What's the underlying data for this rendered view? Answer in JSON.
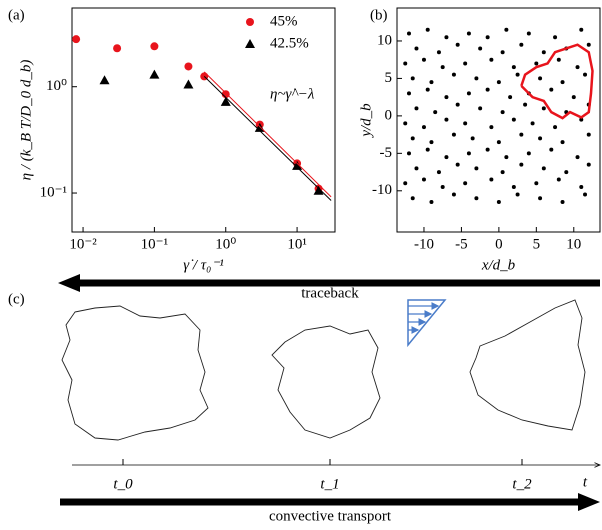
{
  "chart_data": [
    {
      "type": "scatter",
      "panel": "(a)",
      "xlabel": "γ̇ / τ₀⁻¹",
      "ylabel": "η / (k_B T/D_0 d_b)",
      "annotation": "η~γ̇^−λ",
      "xlog": true,
      "ylog": true,
      "xlim": [
        0.007,
        34
      ],
      "ylim": [
        0.043,
        5.5
      ],
      "xticks": [
        {
          "value": 0.01,
          "label": "10⁻²"
        },
        {
          "value": 0.1,
          "label": "10⁻¹"
        },
        {
          "value": 1,
          "label": "10⁰"
        },
        {
          "value": 10,
          "label": "10¹"
        }
      ],
      "yticks": [
        {
          "value": 0.1,
          "label": "10⁻¹"
        },
        {
          "value": 1,
          "label": "10⁰"
        }
      ],
      "legend": "upper right",
      "series": [
        {
          "name": "45%",
          "color": "#e8141c",
          "marker": "circle",
          "x": [
            0.008,
            0.03,
            0.1,
            0.3,
            0.5,
            1,
            3,
            10,
            20
          ],
          "values": [
            2.8,
            2.3,
            2.4,
            1.55,
            1.25,
            0.85,
            0.44,
            0.19,
            0.11
          ]
        },
        {
          "name": "42.5%",
          "color": "#000000",
          "marker": "triangle",
          "x": [
            0.02,
            0.1,
            0.3,
            1,
            3,
            10,
            20
          ],
          "values": [
            1.15,
            1.3,
            1.05,
            0.72,
            0.41,
            0.18,
            0.105
          ]
        },
        {
          "color": "#e8141c",
          "marker": "line",
          "x": [
            0.5,
            30
          ],
          "values": [
            1.38,
            0.092
          ]
        },
        {
          "color": "#000000",
          "marker": "line",
          "x": [
            0.5,
            30
          ],
          "values": [
            1.25,
            0.085
          ]
        }
      ]
    },
    {
      "type": "scatter",
      "panel": "(b)",
      "xlabel": "x/d_b",
      "ylabel": "y/d_b",
      "xlog": false,
      "ylog": false,
      "xlim": [
        -13.6,
        13.5
      ],
      "ylim": [
        -15.5,
        14.4
      ],
      "xticks": [
        -10,
        -5,
        0,
        5,
        10
      ],
      "yticks": [
        -10,
        -5,
        0,
        5,
        10
      ],
      "series": [
        {
          "color": "#000000",
          "marker": "dot",
          "x": [
            -12,
            -9.5,
            -7,
            -4,
            -1.5,
            1,
            4,
            7.5,
            11,
            -11,
            -8,
            -5.5,
            -2.5,
            0.5,
            3,
            6,
            9,
            12,
            -12.5,
            -10,
            -7.5,
            -4.5,
            -1,
            2,
            5,
            8,
            10.5,
            -11.5,
            -9,
            -6,
            -3,
            0,
            2.5,
            5.5,
            8.5,
            11.5,
            -12,
            -9.5,
            -7,
            -4,
            -1.5,
            1.5,
            4,
            7,
            10,
            -11,
            -8.5,
            -5.5,
            -2.5,
            0.5,
            3.5,
            6,
            9,
            12,
            -12.5,
            -10,
            -7,
            -4.5,
            -1,
            2,
            4.5,
            7.5,
            11,
            -11.5,
            -9,
            -6,
            -3.5,
            0,
            3,
            5.5,
            8.5,
            12,
            -12,
            -9.5,
            -7,
            -4,
            -1.5,
            1,
            4,
            7,
            10.5,
            -11,
            -8,
            -5.5,
            -3,
            0.5,
            3,
            6,
            9,
            12,
            -12.5,
            -10,
            -7.5,
            -4.5,
            -1,
            2,
            5,
            8,
            11,
            -11.5,
            -9,
            -6,
            -3,
            0,
            2.5,
            5.5,
            8.5,
            11.5
          ],
          "values": [
            11,
            11.5,
            10.5,
            11,
            10.5,
            11.5,
            11,
            10.5,
            11.5,
            9,
            8.5,
            9.5,
            9,
            8.5,
            9.5,
            8.5,
            9,
            9.5,
            7,
            7.5,
            6.5,
            7,
            7.5,
            6.5,
            7,
            7.5,
            6.5,
            5,
            4.5,
            5.5,
            5,
            4.5,
            5.5,
            5,
            4.5,
            5.5,
            3,
            3.5,
            2.5,
            3,
            3.5,
            2.5,
            3,
            3.5,
            2.5,
            1,
            0.5,
            1.5,
            1,
            0.5,
            1.5,
            1,
            0.5,
            1.5,
            -1,
            -1.5,
            -0.5,
            -1,
            -1.5,
            -0.5,
            -1,
            -1.5,
            -0.5,
            -3,
            -3.5,
            -2.5,
            -3,
            -3.5,
            -2.5,
            -3,
            -3.5,
            -2.5,
            -5,
            -4.5,
            -5.5,
            -5,
            -4.5,
            -5.5,
            -5,
            -4.5,
            -5.5,
            -7,
            -7.5,
            -6.5,
            -7,
            -7.5,
            -6.5,
            -7,
            -7.5,
            -6.5,
            -9,
            -8.5,
            -9.5,
            -9,
            -8.5,
            -9.5,
            -9,
            -8.5,
            -9.5,
            -11,
            -11.5,
            -10.5,
            -11,
            -11.5,
            -10.5,
            -11,
            -11.5,
            -10.5
          ]
        },
        {
          "color": "#e8141c",
          "marker": "line",
          "x": [
            3,
            3.5,
            5,
            6.5,
            7.5,
            9,
            10.5,
            12,
            12.5,
            12.3,
            12,
            11,
            9.5,
            8.5,
            7,
            6,
            4.5,
            3
          ],
          "values": [
            4,
            5.5,
            6.5,
            7,
            8.5,
            9,
            9.5,
            8.5,
            6,
            3,
            0.5,
            -0.2,
            0.5,
            -0.3,
            0.5,
            2,
            2.5,
            4
          ]
        }
      ]
    }
  ],
  "diagram": {
    "panel": "(c)",
    "traceback": "traceback",
    "times": [
      "t_0",
      "t_1",
      "t_2"
    ],
    "time_axis": "t",
    "transport": "convective transport"
  }
}
